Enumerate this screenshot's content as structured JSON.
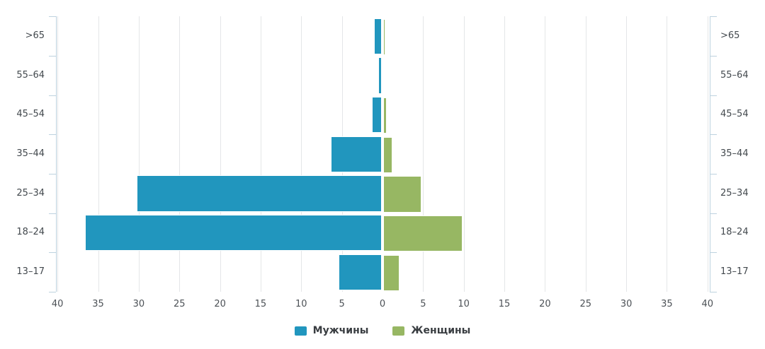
{
  "chart_data": {
    "type": "bar",
    "subtype": "population-pyramid",
    "orientation": "horizontal",
    "title": "",
    "xlabel": "",
    "ylabel": "",
    "grid": true,
    "legend_position": "bottom",
    "categories": [
      ">65",
      "55–64",
      "45–54",
      "35–44",
      "25–34",
      "18–24",
      "13–17"
    ],
    "series": [
      {
        "name": "Мужчины",
        "color": "#2196be",
        "values": [
          1.0,
          0.4,
          1.2,
          6.3,
          30.2,
          36.5,
          5.3
        ],
        "side": "left"
      },
      {
        "name": "Женщины",
        "color": "#97b763",
        "values": [
          0.25,
          0,
          0.4,
          1.1,
          4.7,
          9.8,
          2.0
        ],
        "side": "right"
      }
    ],
    "x_axis": {
      "max_each_side": 40,
      "tick_step": 5,
      "tick_labels_left": [
        "40",
        "35",
        "30",
        "25",
        "20",
        "15",
        "10",
        "5"
      ],
      "tick_label_center": "0",
      "tick_labels_right": [
        "5",
        "10",
        "15",
        "20",
        "25",
        "30",
        "35",
        "40"
      ]
    }
  },
  "legend": {
    "men_label": "Мужчины",
    "women_label": "Женщины"
  },
  "colors": {
    "men": "#2196be",
    "women": "#97b763",
    "gridline": "#e4e6e8",
    "axis": "#bdd2df",
    "tick_text": "#4c5156",
    "age_text": "#43494e",
    "legend_text": "#393d41",
    "background": "#ffffff"
  }
}
